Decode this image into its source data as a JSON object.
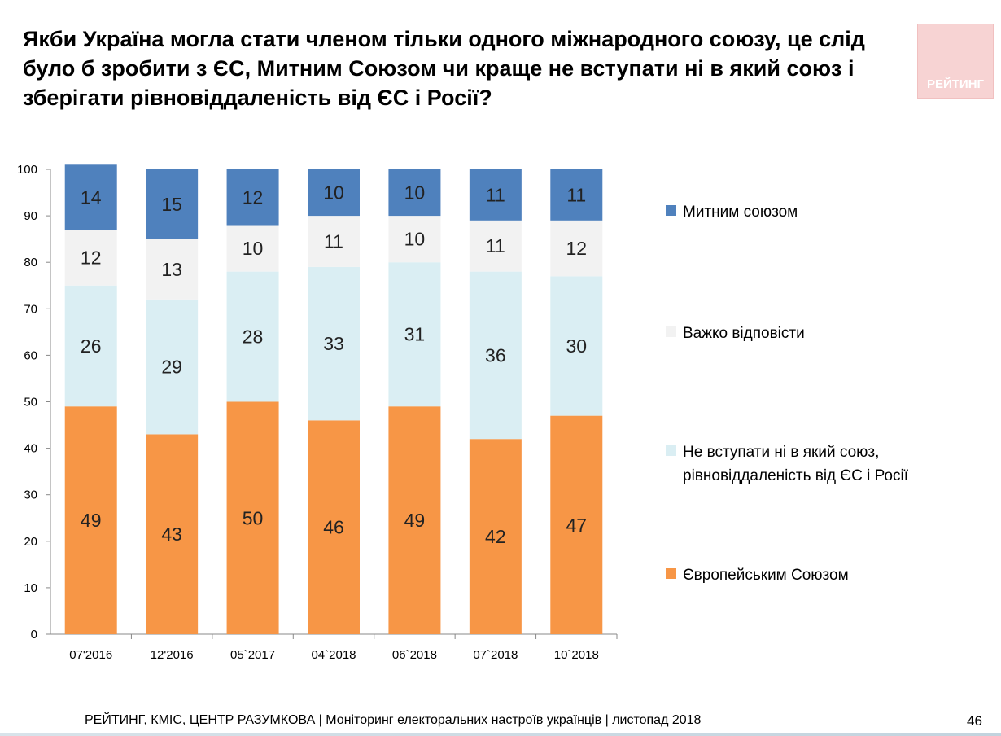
{
  "title": "Якби Україна могла стати членом тільки одного міжнародного союзу, це слід було б зробити з ЄС, Митним Союзом чи краще не вступати ні в який союз і зберігати рівновіддаленість від ЄС і Росії?",
  "logo": {
    "text": "РЕЙТИНГ"
  },
  "footer": {
    "source": "РЕЙТИНГ, КМІС, ЦЕНТР РАЗУМКОВА |  Моніторинг електоральних настроїв українців | листопад 2018",
    "page": "46"
  },
  "colors": {
    "eu": "#f79646",
    "neutral": "#daeef3",
    "hard": "#f2f2f2",
    "customs": "#4f81bd"
  },
  "chart_data": {
    "type": "bar",
    "stacked": true,
    "categories": [
      "07'2016",
      "12'2016",
      "05`2017",
      "04`2018",
      "06`2018",
      "07`2018",
      "10`2018"
    ],
    "series": [
      {
        "key": "eu",
        "name": "Європейським Союзом",
        "values": [
          49,
          43,
          50,
          46,
          49,
          42,
          47
        ]
      },
      {
        "key": "neutral",
        "name": "Не вступати ні в який союз, рівновіддаленість від ЄС і Росії",
        "legend_lines": [
          "Не вступати ні в який союз,",
          "рівновіддаленість від ЄС і Росії"
        ],
        "values": [
          26,
          29,
          28,
          33,
          31,
          36,
          30
        ]
      },
      {
        "key": "hard",
        "name": "Важко відповісти",
        "values": [
          12,
          13,
          10,
          11,
          10,
          11,
          12
        ]
      },
      {
        "key": "customs",
        "name": "Митним союзом",
        "values": [
          14,
          15,
          12,
          10,
          10,
          11,
          11
        ]
      }
    ],
    "legend_order": [
      "customs",
      "hard",
      "neutral",
      "eu"
    ],
    "ylim": [
      0,
      100
    ],
    "yticks": [
      0,
      10,
      20,
      30,
      40,
      50,
      60,
      70,
      80,
      90,
      100
    ],
    "xlabel": "",
    "ylabel": "",
    "legend_position": "right"
  }
}
